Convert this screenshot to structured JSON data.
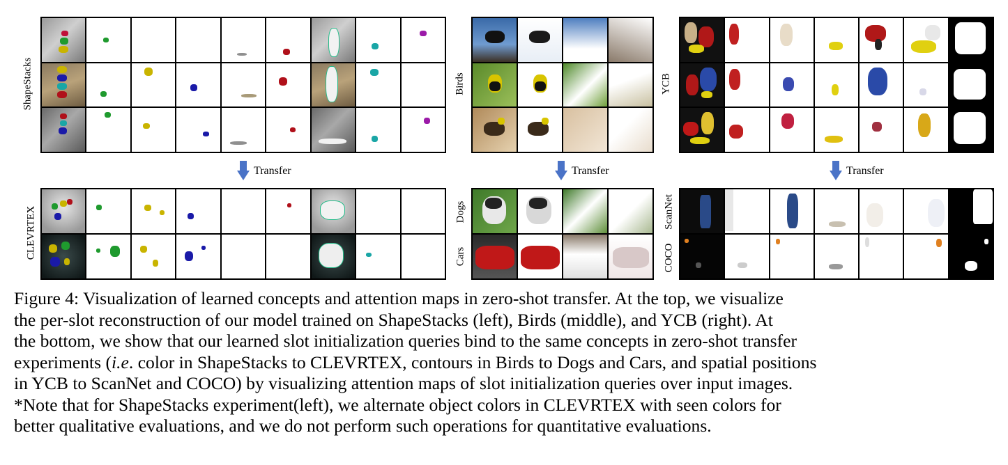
{
  "panels": {
    "left": {
      "top_label": "ShapeStacks",
      "bottom_label": "CLEVRTEX",
      "transfer": "Transfer"
    },
    "middle": {
      "top_label": "Birds",
      "bottom_labels": [
        "Dogs",
        "Cars"
      ],
      "transfer": "Transfer"
    },
    "right": {
      "top_label": "YCB",
      "bottom_labels": [
        "ScanNet",
        "COCO"
      ],
      "transfer": "Transfer"
    }
  },
  "caption": {
    "lines": [
      "Figure 4: Visualization of learned concepts and attention maps in zero-shot transfer. At the top, we visualize",
      "the per-slot reconstruction of our model trained on ShapeStacks (left), Birds (middle), and YCB (right). At",
      "the bottom, we show that our learned slot initialization queries bind to the same concepts in zero-shot transfer",
      "color in ShapeStacks to CLEVRTEX, contours in Birds to Dogs and Cars, and spatial positions",
      "in YCB to ScanNet and COCO) by visualizing attention maps of slot initialization queries over input images.",
      "*Note that for ShapeStacks experiment(left), we alternate object colors in CLEVRTEX with seen colors for",
      "better qualitative evaluations, and we do not perform such operations for quantitative evaluations."
    ],
    "line4_prefix": "experiments (",
    "line4_italic": "i.e",
    "line4_suffix": ". "
  },
  "colors": {
    "arrow": "#4a73c7",
    "green_obj": "#1f9a2e",
    "yellow_obj": "#c9b400",
    "blue_obj": "#1a1aa8",
    "red_obj": "#b0101a",
    "teal_obj": "#1aa6a6",
    "purple_obj": "#9b1aa8",
    "gray_obj": "#8f8f8f"
  }
}
